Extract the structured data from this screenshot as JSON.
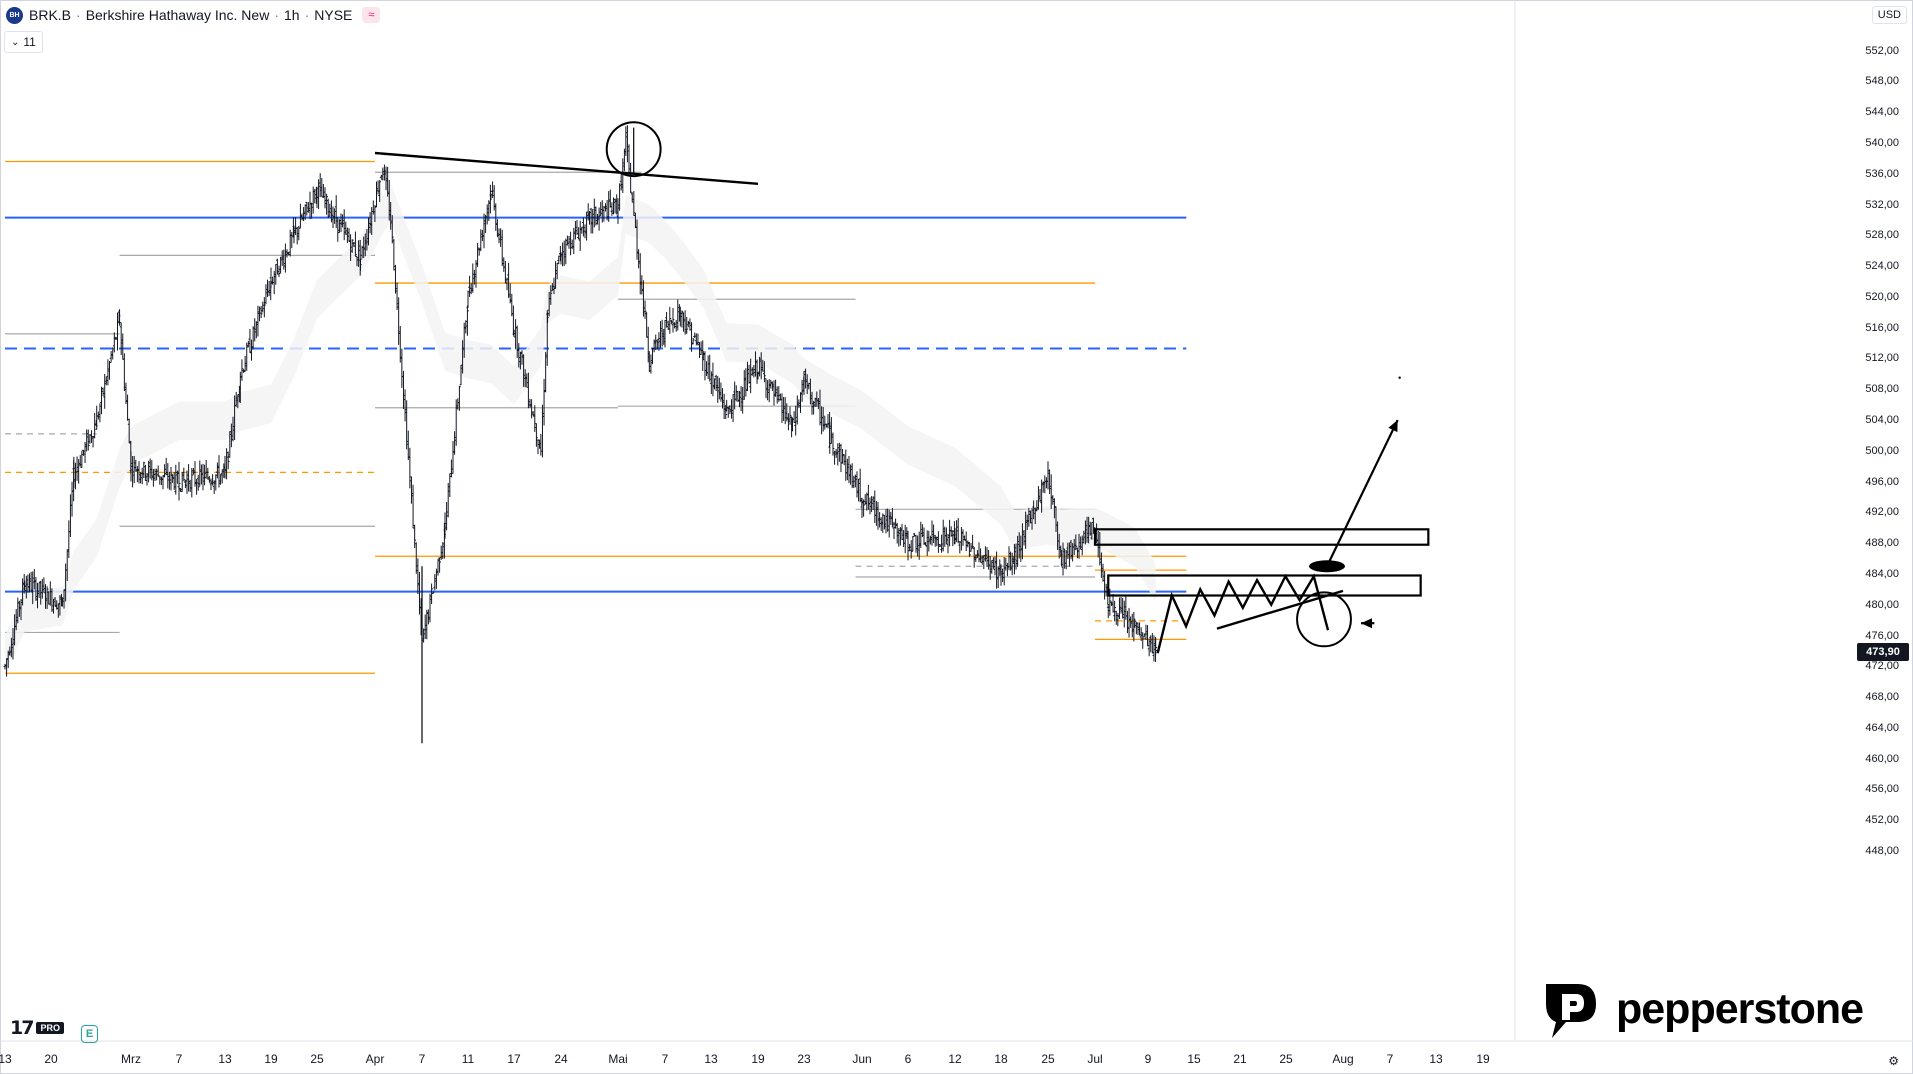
{
  "header": {
    "symbol": "BRK.B",
    "name": "Berkshire Hathaway Inc. New",
    "interval": "1h",
    "exchange": "NYSE",
    "sep": "·",
    "logo_text": "BH",
    "badge": "≈"
  },
  "indicator_toggle": {
    "chevron": "⌄",
    "count": "11"
  },
  "currency": "USD",
  "last_price": "473,90",
  "branding": {
    "tv": "17",
    "tv_pro": "PRO",
    "e_badge": "E",
    "broker": "pepperstone",
    "settings_icon": "⚙"
  },
  "colors": {
    "orange": "#ff9800",
    "blue": "#2962ff",
    "gray": "#9e9e9e",
    "ink": "#000000",
    "candle": "#131722"
  },
  "chart_data": {
    "type": "candlestick",
    "y_axis": {
      "range": [
        446,
        555
      ],
      "ticks": [
        "552,00",
        "548,00",
        "544,00",
        "540,00",
        "536,00",
        "532,00",
        "528,00",
        "524,00",
        "520,00",
        "516,00",
        "512,00",
        "508,00",
        "504,00",
        "500,00",
        "496,00",
        "492,00",
        "488,00",
        "484,00",
        "480,00",
        "476,00",
        "472,00",
        "468,00",
        "464,00",
        "460,00",
        "456,00",
        "452,00",
        "448,00"
      ]
    },
    "x_axis": {
      "labels": [
        "13",
        "20",
        "Mrz",
        "7",
        "13",
        "19",
        "25",
        "Apr",
        "7",
        "11",
        "17",
        "24",
        "Mai",
        "7",
        "13",
        "19",
        "23",
        "Jun",
        "6",
        "12",
        "18",
        "25",
        "Jul",
        "9",
        "15",
        "21",
        "25",
        "Aug",
        "7",
        "13",
        "19"
      ]
    },
    "price_path": [
      {
        "x": "Feb 13",
        "y": 472
      },
      {
        "x": "Feb 16",
        "y": 483
      },
      {
        "x": "Feb 22",
        "y": 480
      },
      {
        "x": "Feb 24",
        "y": 497
      },
      {
        "x": "Feb 28",
        "y": 504
      },
      {
        "x": "Mar 1",
        "y": 517
      },
      {
        "x": "Mar 3",
        "y": 498
      },
      {
        "x": "Mar 7",
        "y": 496
      },
      {
        "x": "Mar 13",
        "y": 497
      },
      {
        "x": "Mar 15",
        "y": 510
      },
      {
        "x": "Mar 19",
        "y": 522
      },
      {
        "x": "Mar 22",
        "y": 528
      },
      {
        "x": "Mar 25",
        "y": 534
      },
      {
        "x": "Mar 28",
        "y": 525
      },
      {
        "x": "Apr 2",
        "y": 537
      },
      {
        "x": "Apr 3",
        "y": 530
      },
      {
        "x": "Apr 7",
        "y": 475
      },
      {
        "x": "Apr 9",
        "y": 490
      },
      {
        "x": "Apr 11",
        "y": 520
      },
      {
        "x": "Apr 14",
        "y": 534
      },
      {
        "x": "Apr 17",
        "y": 516
      },
      {
        "x": "Apr 21",
        "y": 500
      },
      {
        "x": "Apr 22",
        "y": 518
      },
      {
        "x": "Apr 24",
        "y": 526
      },
      {
        "x": "Apr 28",
        "y": 530
      },
      {
        "x": "May 1",
        "y": 532
      },
      {
        "x": "May 2",
        "y": 540
      },
      {
        "x": "May 5",
        "y": 512
      },
      {
        "x": "May 7",
        "y": 516
      },
      {
        "x": "May 9",
        "y": 518
      },
      {
        "x": "May 12",
        "y": 512
      },
      {
        "x": "May 15",
        "y": 505
      },
      {
        "x": "May 19",
        "y": 511
      },
      {
        "x": "May 22",
        "y": 503
      },
      {
        "x": "May 23",
        "y": 509
      },
      {
        "x": "May 27",
        "y": 502
      },
      {
        "x": "Jun 2",
        "y": 494
      },
      {
        "x": "Jun 6",
        "y": 488
      },
      {
        "x": "Jun 12",
        "y": 489
      },
      {
        "x": "Jun 18",
        "y": 484
      },
      {
        "x": "Jun 20",
        "y": 486
      },
      {
        "x": "Jun 25",
        "y": 497
      },
      {
        "x": "Jun 27",
        "y": 486
      },
      {
        "x": "Jul 1",
        "y": 490
      },
      {
        "x": "Jul 3",
        "y": 480
      },
      {
        "x": "Jul 7",
        "y": 477
      },
      {
        "x": "Jul 10",
        "y": 473.9
      }
    ],
    "wick_extremes": {
      "low": 462,
      "high": 542
    },
    "horizontal_levels": [
      {
        "price": 537.6,
        "style": "solid",
        "color": "orange",
        "from": "Feb 13",
        "to": "Apr 1"
      },
      {
        "price": 530.3,
        "style": "solid",
        "color": "blue",
        "from": "Feb 13",
        "to": "Jul 14"
      },
      {
        "price": 521.8,
        "style": "solid",
        "color": "orange",
        "from": "Apr 1",
        "to": "Jul 1"
      },
      {
        "price": 513.3,
        "style": "dashed",
        "color": "blue",
        "from": "Feb 13",
        "to": "Jul 14"
      },
      {
        "price": 481.7,
        "style": "solid",
        "color": "blue",
        "from": "Feb 13",
        "to": "Jul 14"
      },
      {
        "price": 486.3,
        "style": "solid",
        "color": "orange",
        "from": "Apr 1",
        "to": "Jul 14"
      },
      {
        "price": 471.1,
        "style": "solid",
        "color": "orange",
        "from": "Feb 13",
        "to": "Apr 1"
      },
      {
        "price": 497.2,
        "style": "dashed",
        "color": "orange",
        "from": "Feb 13",
        "to": "Apr 1"
      },
      {
        "price": 484.5,
        "style": "solid",
        "color": "orange",
        "from": "Jul 1",
        "to": "Jul 14"
      },
      {
        "price": 475.5,
        "style": "solid",
        "color": "orange",
        "from": "Jul 1",
        "to": "Jul 14"
      },
      {
        "price": 477.9,
        "style": "dashed",
        "color": "orange",
        "from": "Jul 1",
        "to": "Jul 14"
      }
    ],
    "gray_levels": [
      {
        "price": 536.2,
        "from": "Apr 1",
        "to": "May 4"
      },
      {
        "price": 525.4,
        "from": "Mar 1",
        "to": "Mar 29"
      },
      {
        "price": 519.7,
        "from": "May 1",
        "to": "Jun 1"
      },
      {
        "price": 505.6,
        "from": "Apr 1",
        "to": "May 1"
      },
      {
        "price": 505.8,
        "from": "May 1",
        "to": "Jun 1"
      },
      {
        "price": 502.2,
        "from": "Feb 13",
        "to": "Feb 28",
        "style": "dashed"
      },
      {
        "price": 490.2,
        "from": "Mar 1",
        "to": "Apr 1"
      },
      {
        "price": 492.4,
        "from": "Jun 1",
        "to": "Jul 1"
      },
      {
        "price": 485.0,
        "from": "Jun 1",
        "to": "Jul 1",
        "style": "dashed"
      },
      {
        "price": 483.6,
        "from": "Jun 1",
        "to": "Jul 1"
      },
      {
        "price": 476.4,
        "from": "Feb 13",
        "to": "Mar 1"
      },
      {
        "price": 515.2,
        "from": "Feb 13",
        "to": "Mar 1"
      }
    ],
    "annotations": [
      {
        "type": "trendline",
        "from": {
          "x": "Apr 1",
          "y": 538.7
        },
        "to": {
          "x": "May 19",
          "y": 534.7
        }
      },
      {
        "type": "circle",
        "at": {
          "x": "May 3",
          "y": 539.2
        }
      },
      {
        "type": "zone",
        "y_range": [
          487.8,
          489.8
        ],
        "from": "Jul 1",
        "to": "Aug 12"
      },
      {
        "type": "zone",
        "y_range": [
          481.2,
          483.8
        ],
        "from": "Jul 3",
        "to": "Aug 11"
      },
      {
        "type": "zigzag",
        "y": [
          473.7,
          481.2,
          477.2,
          482.0,
          478.6,
          483.0,
          479.6,
          483.2,
          480.0,
          483.7,
          480.6,
          483.7,
          476.7
        ]
      },
      {
        "type": "trendline",
        "from": {
          "x": "Jul 18",
          "y": 476.9
        },
        "to": {
          "x": "Jul 31",
          "y": 481.8
        }
      },
      {
        "type": "circle",
        "at": {
          "x": "Jul 29",
          "y": 478.1
        }
      },
      {
        "type": "arrow",
        "from": {
          "x": "Aug 5",
          "y": 477.6
        },
        "to": {
          "x": "Jul 31",
          "y": 477.6
        }
      },
      {
        "type": "ellipse",
        "at": {
          "x": "Aug 1",
          "y": 485.0
        }
      },
      {
        "type": "arrow",
        "from": {
          "x": "Aug 1",
          "y": 485.0
        },
        "to": {
          "x": "Aug 8",
          "y": 504.0
        }
      }
    ]
  }
}
